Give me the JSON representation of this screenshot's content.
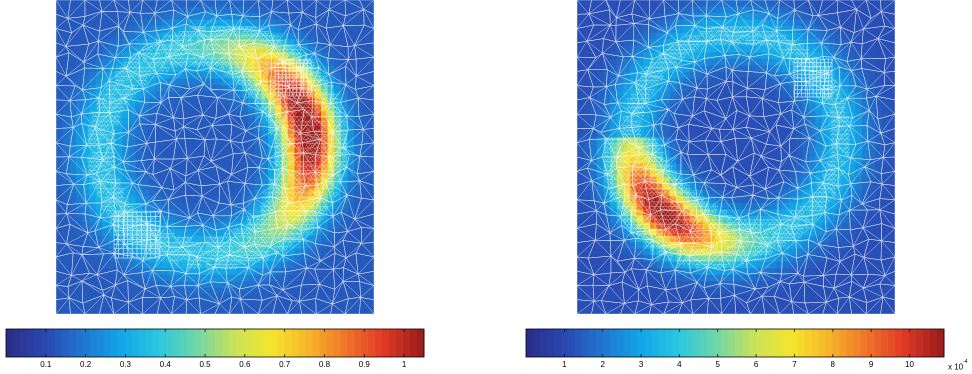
{
  "figures": [
    {
      "id": "left",
      "colorbar": {
        "min": 0.0,
        "max": 1.05,
        "ticks": [
          0.1,
          0.2,
          0.3,
          0.4,
          0.5,
          0.6,
          0.7,
          0.8,
          0.9,
          1.0
        ],
        "tick_labels": [
          "0.1",
          "0.2",
          "0.3",
          "0.4",
          "0.5",
          "0.6",
          "0.7",
          "0.8",
          "0.9",
          "1"
        ],
        "exponent_label": ""
      },
      "field": {
        "description_free": true,
        "hotspot": "upper-right crescent",
        "peak_value": 0.9
      }
    },
    {
      "id": "right",
      "colorbar": {
        "min": 0.0,
        "max": 10.9,
        "ticks": [
          1,
          2,
          3,
          4,
          5,
          6,
          7,
          8,
          9,
          10
        ],
        "tick_labels": [
          "1",
          "2",
          "3",
          "4",
          "5",
          "6",
          "7",
          "8",
          "9",
          "10"
        ],
        "exponent_label": "x 10",
        "exponent_power": "-4"
      },
      "field": {
        "hotspot": "lower-left crescent",
        "peak_value": 0.85
      }
    }
  ],
  "colors": {
    "background_field": "#2c2e8f",
    "mesh_lines": "#ffffff",
    "colormap": [
      "#2b2f8c",
      "#2a4ab3",
      "#1f78d0",
      "#13a6e8",
      "#2bc7e0",
      "#6fd6a8",
      "#c8e25a",
      "#f4e62c",
      "#f7b52a",
      "#f0752a",
      "#e03a26",
      "#9e1e1e"
    ]
  }
}
